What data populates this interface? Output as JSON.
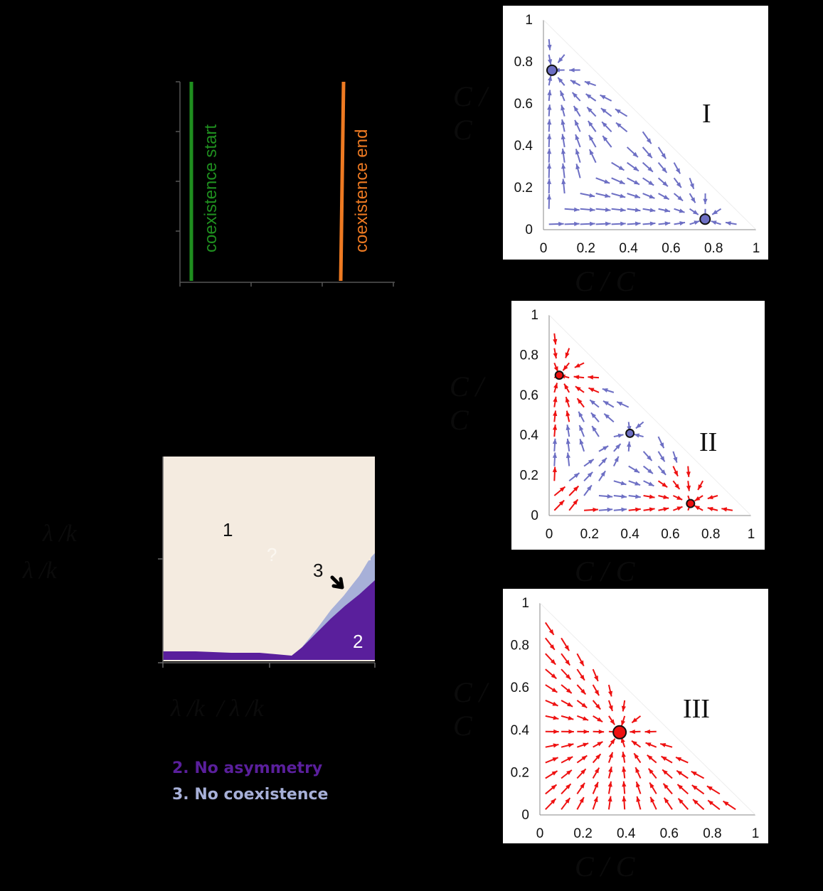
{
  "colors": {
    "coexistence_start": "#1f8f1f",
    "coexistence_end": "#ee7a22",
    "region1": "#f4ebe0",
    "region2": "#5a1f9c",
    "region3": "#a7b0d8",
    "blue_flow": "#6d6fc4",
    "red_flow": "#ee1111"
  },
  "top_left_plot": {
    "start_label": "coexistence start",
    "end_label": "coexistence end"
  },
  "phase_diagram": {
    "region_labels": [
      "1",
      "2",
      "3"
    ],
    "faint_label": "?",
    "ylabel_1": "λ /k",
    "ylabel_2": "λ /k",
    "xlabel": "λ /k  / λ /k"
  },
  "legend": {
    "item2": "2. No asymmetry",
    "item3": "3. No coexistence"
  },
  "chart_data": [
    {
      "type": "stream",
      "panel": "I",
      "xlabel": "C / C",
      "ylabel": "C / C",
      "xticks": [
        "0",
        "0.2",
        "0.4",
        "0.6",
        "0.8",
        "1"
      ],
      "yticks": [
        "0",
        "0.2",
        "0.4",
        "0.6",
        "0.8",
        "1"
      ],
      "xlim": [
        0,
        1
      ],
      "ylim": [
        0,
        1
      ],
      "fixed_points": [
        {
          "x": 0.04,
          "y": 0.76,
          "stability": "stable"
        },
        {
          "x": 0.76,
          "y": 0.05,
          "stability": "stable"
        }
      ],
      "flow_color": "blue"
    },
    {
      "type": "stream",
      "panel": "II",
      "xlabel": "C / C",
      "ylabel": "C / C",
      "xticks": [
        "0",
        "0.2",
        "0.4",
        "0.6",
        "0.8",
        "1"
      ],
      "yticks": [
        "0",
        "0.2",
        "0.4",
        "0.6",
        "0.8",
        "1"
      ],
      "xlim": [
        0,
        1
      ],
      "ylim": [
        0,
        1
      ],
      "fixed_points": [
        {
          "x": 0.05,
          "y": 0.7,
          "stability": "stable"
        },
        {
          "x": 0.4,
          "y": 0.41,
          "stability": "unstable"
        },
        {
          "x": 0.7,
          "y": 0.06,
          "stability": "stable"
        }
      ],
      "flow_color": "red and blue"
    },
    {
      "type": "stream",
      "panel": "III",
      "xlabel": "C / C",
      "ylabel": "C / C",
      "xticks": [
        "0",
        "0.2",
        "0.4",
        "0.6",
        "0.8",
        "1"
      ],
      "yticks": [
        "0",
        "0.2",
        "0.4",
        "0.6",
        "0.8",
        "1"
      ],
      "xlim": [
        0,
        1
      ],
      "ylim": [
        0,
        1
      ],
      "fixed_points": [
        {
          "x": 0.37,
          "y": 0.39,
          "stability": "stable"
        }
      ],
      "flow_color": "red"
    }
  ]
}
